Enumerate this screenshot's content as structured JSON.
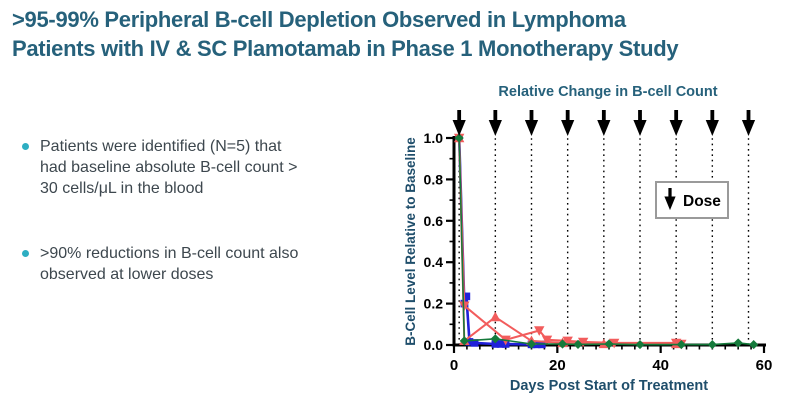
{
  "slide": {
    "title_line1": ">95-99% Peripheral B-cell Depletion Observed in Lymphoma",
    "title_line2": "Patients with IV & SC Plamotamab in Phase 1 Monotherapy Study",
    "bullets": [
      "Patients were identified (N=5) that had baseline absolute B-cell count > 30 cells/μL in the blood",
      ">90% reductions in B-cell count also observed at lower doses"
    ]
  },
  "colors": {
    "title_teal": "#26617B",
    "bullet_dot_cyan": "#2DAEC2",
    "body_text": "#3D474E",
    "axis_label_navy": "#1F4E6B",
    "tick_text": "#000000",
    "dose_arrow": "#000000",
    "legend_border": "#9A9A9A",
    "series_blue": "#2121D9",
    "series_red": "#F25C5C",
    "series_green": "#157A3B"
  },
  "chart_data": {
    "type": "line",
    "title": "Relative Change in B-cell Count",
    "xlabel": "Days Post Start of Treatment",
    "ylabel": "B-Cell Level Relative to Baseline",
    "xlim": [
      0,
      60
    ],
    "ylim": [
      0,
      1.0
    ],
    "xticks": [
      0,
      20,
      40,
      60
    ],
    "yticks": [
      0,
      0.2,
      0.4,
      0.6,
      0.8,
      1.0
    ],
    "x_minor_step": 2.5,
    "y_minor_step": 0.1,
    "grid": "off",
    "dose_days": [
      1,
      8,
      15,
      22,
      29,
      36,
      43,
      50,
      57
    ],
    "legend": {
      "label": "Dose",
      "position": "inside-right",
      "symbol": "down-arrow"
    },
    "series": [
      {
        "name": "patient-blue-squares",
        "marker": "square",
        "color": "#2121D9",
        "points": [
          [
            1,
            1.0
          ],
          [
            2,
            0.2
          ],
          [
            2.4,
            0.235
          ],
          [
            3,
            0.015
          ],
          [
            4,
            0.01
          ],
          [
            8,
            0.005
          ],
          [
            9,
            0.005
          ],
          [
            10,
            0.005
          ],
          [
            15,
            0.003
          ],
          [
            16,
            0.003
          ],
          [
            17,
            0.003
          ]
        ]
      },
      {
        "name": "patient-red-down-triangles",
        "marker": "triangle-down",
        "color": "#F25C5C",
        "points": [
          [
            1,
            1.0
          ],
          [
            2,
            0.19
          ],
          [
            10,
            0.025
          ],
          [
            16.5,
            0.07
          ],
          [
            18,
            0.025
          ],
          [
            22,
            0.02
          ],
          [
            25,
            0.015
          ],
          [
            31,
            0.01
          ],
          [
            43,
            0.01
          ],
          [
            44,
            0.005
          ]
        ]
      },
      {
        "name": "patient-red-up-triangles",
        "marker": "triangle-up",
        "color": "#F25C5C",
        "points": [
          [
            1,
            1.0
          ],
          [
            2,
            0.02
          ],
          [
            8,
            0.135
          ],
          [
            15,
            0.02
          ],
          [
            21,
            0.01
          ],
          [
            29,
            0.005
          ],
          [
            43,
            0.005
          ]
        ]
      },
      {
        "name": "patient-green-diamonds",
        "marker": "diamond",
        "color": "#157A3B",
        "points": [
          [
            1,
            1.0
          ],
          [
            2,
            0.02
          ],
          [
            8,
            0.03
          ],
          [
            15,
            0.005
          ],
          [
            21,
            0.005
          ],
          [
            24,
            0.003
          ],
          [
            30,
            0.005
          ],
          [
            36,
            0.002
          ],
          [
            44,
            0.002
          ],
          [
            50,
            0.002
          ],
          [
            55,
            0.01
          ],
          [
            58,
            0.002
          ]
        ]
      }
    ]
  }
}
